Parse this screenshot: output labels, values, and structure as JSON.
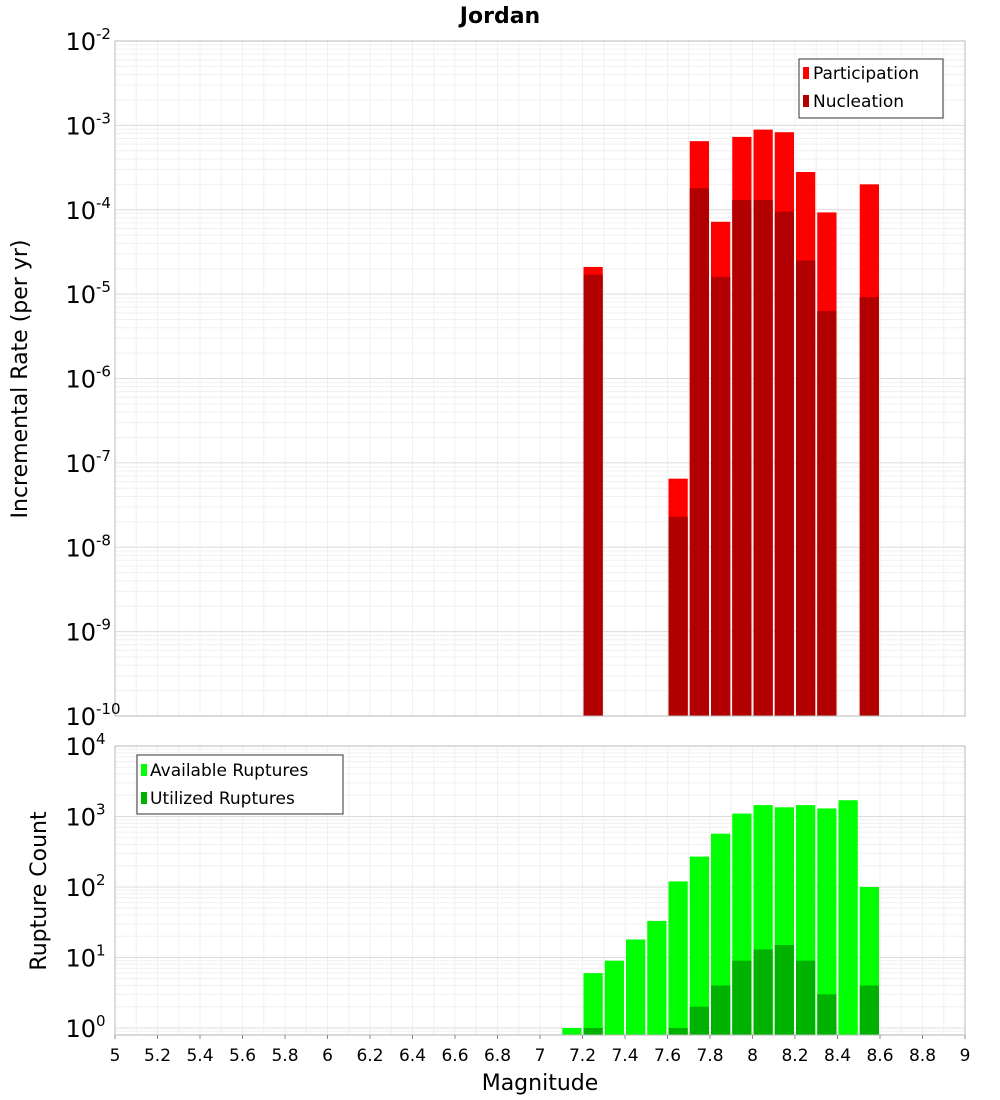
{
  "chart_data": [
    {
      "type": "bar",
      "title": "Jordan",
      "xlabel": "Magnitude",
      "ylabel": "Incremental Rate (per yr)",
      "yscale": "log",
      "xlim": [
        5,
        9
      ],
      "ylim_exponents": [
        -10,
        -2
      ],
      "y_ticks": [
        {
          "base": "10",
          "exp": "-2"
        },
        {
          "base": "10",
          "exp": "-3"
        },
        {
          "base": "10",
          "exp": "-4"
        },
        {
          "base": "10",
          "exp": "-5"
        },
        {
          "base": "10",
          "exp": "-6"
        },
        {
          "base": "10",
          "exp": "-7"
        },
        {
          "base": "10",
          "exp": "-8"
        },
        {
          "base": "10",
          "exp": "-9"
        },
        {
          "base": "10",
          "exp": "-10"
        }
      ],
      "grid": true,
      "legend_position": "top-right",
      "legend": [
        "Participation",
        "Nucleation"
      ],
      "colors": {
        "Participation": "#ff0000",
        "Nucleation": "#b20000"
      },
      "x": [
        7.25,
        7.65,
        7.75,
        7.85,
        7.95,
        8.05,
        8.15,
        8.25,
        8.35,
        8.55
      ],
      "series": [
        {
          "name": "Participation",
          "values": [
            2.1e-05,
            6.5e-08,
            0.00065,
            7.2e-05,
            0.00073,
            0.00089,
            0.00083,
            0.00028,
            9.3e-05,
            0.0002
          ]
        },
        {
          "name": "Nucleation",
          "values": [
            1.7e-05,
            2.3e-08,
            0.00018,
            1.6e-05,
            0.00013,
            0.00013,
            9.5e-05,
            2.5e-05,
            6.3e-06,
            9.2e-06
          ]
        }
      ]
    },
    {
      "type": "bar",
      "xlabel": "Magnitude",
      "ylabel": "Rupture Count",
      "yscale": "log",
      "xlim": [
        5,
        9
      ],
      "ylim_exponents": [
        -0.1,
        4
      ],
      "x_ticks": [
        "5",
        "5.2",
        "5.4",
        "5.6",
        "5.8",
        "6",
        "6.2",
        "6.4",
        "6.6",
        "6.8",
        "7",
        "7.2",
        "7.4",
        "7.6",
        "7.8",
        "8",
        "8.2",
        "8.4",
        "8.6",
        "8.8",
        "9"
      ],
      "y_ticks": [
        {
          "base": "10",
          "exp": "4"
        },
        {
          "base": "10",
          "exp": "3"
        },
        {
          "base": "10",
          "exp": "2"
        },
        {
          "base": "10",
          "exp": "1"
        },
        {
          "base": "10",
          "exp": "0"
        }
      ],
      "grid": true,
      "legend_position": "top-left",
      "legend": [
        "Available Ruptures",
        "Utilized Ruptures"
      ],
      "colors": {
        "Available Ruptures": "#00ff00",
        "Utilized Ruptures": "#00b200"
      },
      "x": [
        7.15,
        7.25,
        7.35,
        7.45,
        7.55,
        7.65,
        7.75,
        7.85,
        7.95,
        8.05,
        8.15,
        8.25,
        8.35,
        8.45,
        8.55
      ],
      "series": [
        {
          "name": "Available Ruptures",
          "values": [
            1,
            6,
            9,
            18,
            33,
            120,
            270,
            570,
            1100,
            1450,
            1350,
            1450,
            1300,
            1700,
            100
          ]
        },
        {
          "name": "Utilized Ruptures",
          "values": [
            0,
            1,
            0,
            0,
            0,
            1,
            2,
            4,
            9,
            13,
            15,
            9,
            3,
            0,
            4
          ]
        }
      ]
    }
  ]
}
